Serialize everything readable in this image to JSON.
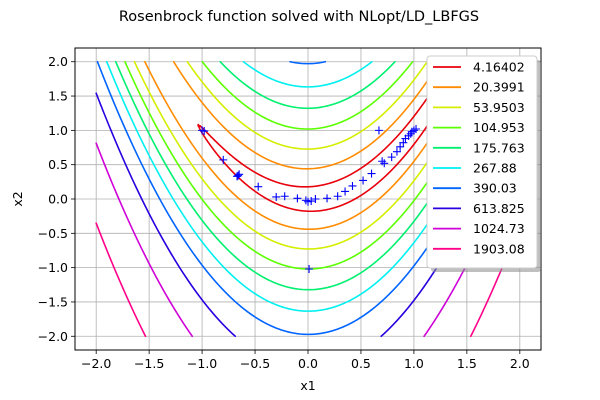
{
  "chart_data": {
    "type": "contour",
    "title": "Rosenbrock function solved with NLopt/LD_LBFGS",
    "xlabel": "x1",
    "ylabel": "x2",
    "xlim": [
      -2.2,
      2.2
    ],
    "ylim": [
      -2.2,
      2.2
    ],
    "x_ticks": [
      "−2.0",
      "−1.5",
      "−1.0",
      "−0.5",
      "0.0",
      "0.5",
      "1.0",
      "1.5",
      "2.0"
    ],
    "y_ticks": [
      "−2.0",
      "−1.5",
      "−1.0",
      "−0.5",
      "0.0",
      "0.5",
      "1.0",
      "1.5",
      "2.0"
    ],
    "grid": true,
    "legend_position": "top-right",
    "function_domain": {
      "x": [
        -2,
        2
      ],
      "y": [
        -2,
        2
      ]
    },
    "contour_levels": [
      {
        "label": "4.16402",
        "value": 4.16402,
        "color": "#e8000b"
      },
      {
        "label": "20.3991",
        "value": 20.3991,
        "color": "#ff8c00"
      },
      {
        "label": "53.9503",
        "value": 53.9503,
        "color": "#d4ee00"
      },
      {
        "label": "104.953",
        "value": 104.953,
        "color": "#5cff00"
      },
      {
        "label": "175.763",
        "value": 175.763,
        "color": "#00f070"
      },
      {
        "label": "267.88",
        "value": 267.88,
        "color": "#00f0f0"
      },
      {
        "label": "390.03",
        "value": 390.03,
        "color": "#0064ff"
      },
      {
        "label": "613.825",
        "value": 613.825,
        "color": "#2a00e0"
      },
      {
        "label": "1024.73",
        "value": 1024.73,
        "color": "#d000d8"
      },
      {
        "label": "1903.08",
        "value": 1903.08,
        "color": "#ff0088"
      }
    ],
    "search_points": {
      "marker": "+",
      "color": "#0000ff",
      "x": [
        -1.0,
        -0.98,
        -0.8,
        -0.65,
        -0.67,
        -0.66,
        -0.47,
        -0.3,
        -0.22,
        -0.1,
        -0.02,
        0.0,
        0.03,
        0.07,
        0.18,
        0.28,
        0.35,
        0.42,
        0.52,
        0.6,
        0.67,
        0.7,
        0.72,
        0.79,
        0.84,
        0.87,
        0.9,
        0.92,
        0.95,
        0.97,
        0.98,
        1.0,
        1.02,
        0.01
      ],
      "y": [
        1.0,
        0.99,
        0.57,
        0.36,
        0.33,
        0.34,
        0.18,
        0.03,
        0.04,
        0.01,
        -0.02,
        -0.04,
        -0.03,
        0.0,
        0.01,
        0.04,
        0.11,
        0.19,
        0.27,
        0.37,
        1.0,
        0.55,
        0.52,
        0.61,
        0.69,
        0.76,
        0.82,
        0.88,
        0.92,
        0.95,
        0.98,
        1.0,
        1.02,
        -1.02
      ]
    }
  }
}
